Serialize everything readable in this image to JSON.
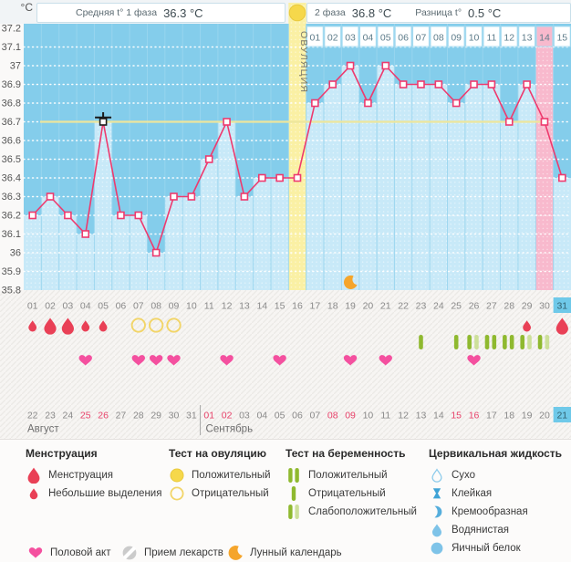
{
  "header": {
    "phase1_label": "Средняя t° 1 фаза",
    "phase1_value": "36.3 °C",
    "phase2_label": "2 фаза",
    "phase2_value": "36.8 °C",
    "diff_label": "Разница t°",
    "diff_value": "0.5 °C"
  },
  "y_axis": {
    "unit": "°C",
    "ticks": [
      "37.2",
      "37.1",
      "37",
      "36.9",
      "36.8",
      "36.7",
      "36.6",
      "36.5",
      "36.4",
      "36.3",
      "36.2",
      "36.1",
      "36",
      "35.9",
      "35.8"
    ]
  },
  "chart_data": {
    "type": "line",
    "ylabel": "°C",
    "ylim": [
      35.8,
      37.2
    ],
    "grid": true,
    "coverline": 36.7,
    "days": [
      "01",
      "02",
      "03",
      "04",
      "05",
      "06",
      "07",
      "08",
      "09",
      "10",
      "11",
      "12",
      "13",
      "14",
      "15",
      "16",
      "17",
      "18",
      "19",
      "20",
      "21",
      "22",
      "23",
      "24",
      "25",
      "26",
      "27",
      "28",
      "29",
      "30",
      "31"
    ],
    "temperatures": [
      36.2,
      36.3,
      36.2,
      36.1,
      36.7,
      36.2,
      36.2,
      36.0,
      36.3,
      36.3,
      36.5,
      36.7,
      36.3,
      36.4,
      36.4,
      36.4,
      36.8,
      36.9,
      37.0,
      36.8,
      37.0,
      36.9,
      36.9,
      36.9,
      36.8,
      36.9,
      36.9,
      36.7,
      36.9,
      36.7,
      36.4
    ],
    "special_marker_day": 5,
    "ovulation": {
      "day": 16,
      "label": "ОВУЛЯЦИЯ",
      "test_positive": true
    },
    "dpo_row": {
      "start_day": 17,
      "labels": [
        "01",
        "02",
        "03",
        "04",
        "05",
        "06",
        "07",
        "08",
        "09",
        "10",
        "11",
        "12",
        "13",
        "14",
        "15"
      ],
      "highlight_label": "14"
    },
    "highlight_day": 30,
    "today_day": 31,
    "moon_day": 19,
    "events": {
      "menstruation": [
        {
          "day": 1,
          "size": "small"
        },
        {
          "day": 2,
          "size": "large"
        },
        {
          "day": 3,
          "size": "large"
        },
        {
          "day": 4,
          "size": "small"
        },
        {
          "day": 5,
          "size": "small"
        },
        {
          "day": 29,
          "size": "small"
        },
        {
          "day": 31,
          "size": "large"
        }
      ],
      "ovulation_tests": [
        {
          "day": 7,
          "result": "negative"
        },
        {
          "day": 8,
          "result": "negative"
        },
        {
          "day": 9,
          "result": "negative"
        }
      ],
      "pregnancy_tests": [
        {
          "day": 23,
          "result": "negative"
        },
        {
          "day": 25,
          "result": "negative"
        },
        {
          "day": 26,
          "result": "weak_positive"
        },
        {
          "day": 27,
          "result": "positive"
        },
        {
          "day": 28,
          "result": "positive"
        },
        {
          "day": 29,
          "result": "weak_positive"
        },
        {
          "day": 30,
          "result": "weak_positive"
        }
      ],
      "intercourse_days": [
        4,
        7,
        8,
        9,
        12,
        15,
        19,
        21,
        26
      ]
    },
    "calendar": {
      "months": [
        {
          "name": "Август",
          "dates": [
            "22",
            "23",
            "24",
            "25",
            "26",
            "27",
            "28",
            "29",
            "30",
            "31"
          ],
          "weekend_dates": [
            "25",
            "26"
          ]
        },
        {
          "name": "Сентябрь",
          "dates": [
            "01",
            "02",
            "03",
            "04",
            "05",
            "06",
            "07",
            "08",
            "09",
            "10",
            "11",
            "12",
            "13",
            "14",
            "15",
            "16",
            "17",
            "18",
            "19",
            "20",
            "21"
          ],
          "weekend_dates": [
            "01",
            "02",
            "08",
            "09",
            "15",
            "16"
          ],
          "today": "21"
        }
      ]
    }
  },
  "legend": {
    "menstruation": {
      "title": "Менструация",
      "items": [
        {
          "icon": "drop-large",
          "label": "Менструация"
        },
        {
          "icon": "drop-small",
          "label": "Небольшие выделения"
        }
      ]
    },
    "ovulation_test": {
      "title": "Тест на овуляцию",
      "items": [
        {
          "icon": "circle-filled",
          "label": "Положительный"
        },
        {
          "icon": "circle-outline",
          "label": "Отрицательный"
        }
      ]
    },
    "pregnancy_test": {
      "title": "Тест на беременность",
      "items": [
        {
          "icon": "bars-positive",
          "label": "Положительный"
        },
        {
          "icon": "bar-negative",
          "label": "Отрицательный"
        },
        {
          "icon": "bars-weak",
          "label": "Слабоположительный"
        }
      ]
    },
    "cervical_fluid": {
      "title": "Цервикальная жидкость",
      "items": [
        {
          "icon": "cf-dry",
          "label": "Сухо"
        },
        {
          "icon": "cf-sticky",
          "label": "Клейкая"
        },
        {
          "icon": "cf-creamy",
          "label": "Кремообразная"
        },
        {
          "icon": "cf-watery",
          "label": "Водянистая"
        },
        {
          "icon": "cf-eggwhite",
          "label": "Яичный белок"
        }
      ]
    },
    "extra": [
      {
        "icon": "heart",
        "label": "Половой акт"
      },
      {
        "icon": "pill",
        "label": "Прием лекарств"
      },
      {
        "icon": "moon",
        "label": "Лунный календарь"
      }
    ]
  },
  "colors": {
    "plot_bg": "#84CDEB",
    "column": "#C8E9F8",
    "ovulation_band": "#FAF0A4",
    "highlight_band": "#F8B9CD",
    "line": "#EE3A6E",
    "coverline": "#EDE69C",
    "test_yellow": "#F6D84B",
    "menstruation_red": "#E94056",
    "heart_pink": "#F4509F",
    "preg_bar": "#8FB92F",
    "preg_bar_pale": "#CDE09A",
    "moon_orange": "#F5A52B",
    "fluid_blue": "#7EC3E8",
    "weekend_red": "#E8436B",
    "today_chip": "#6FC9E9"
  }
}
